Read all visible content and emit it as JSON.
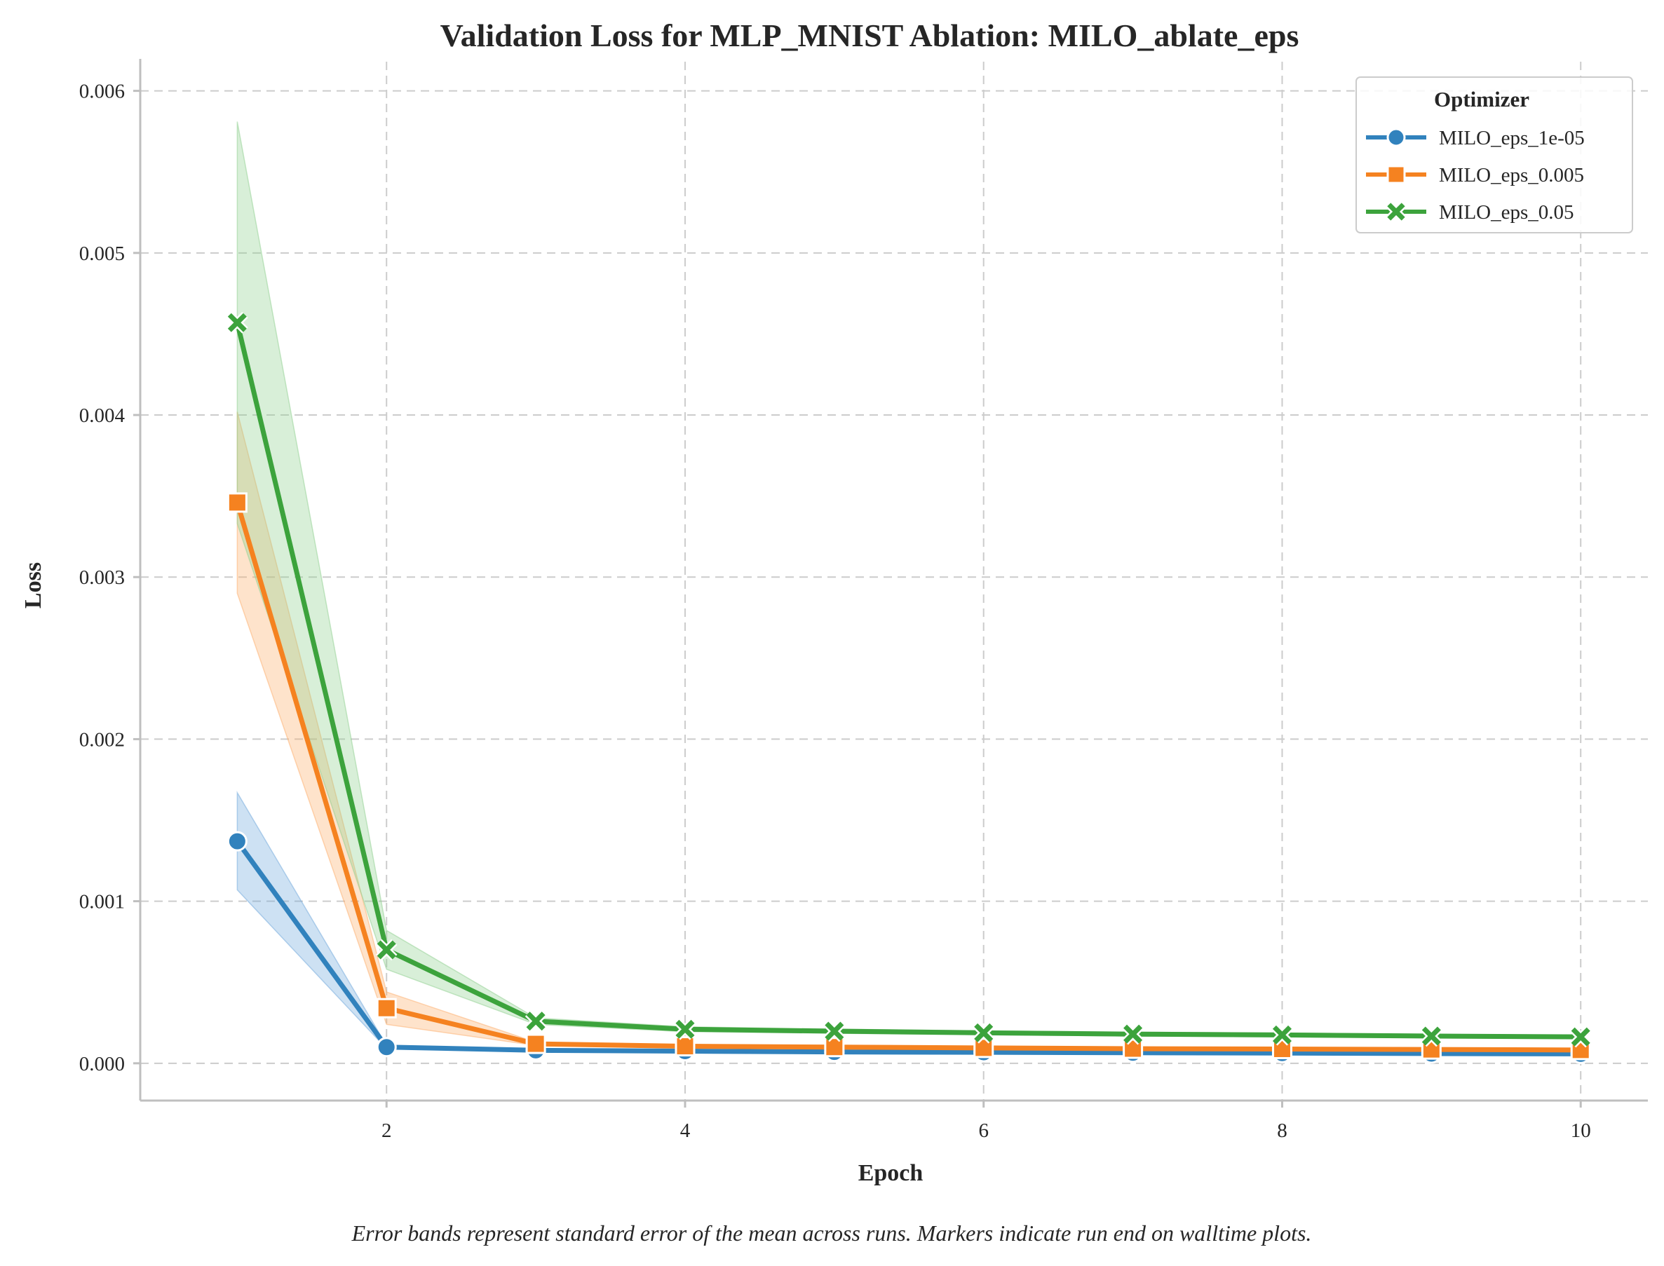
{
  "chart_data": {
    "type": "line",
    "title": "Validation Loss for MLP_MNIST Ablation: MILO_ablate_eps",
    "xlabel": "Epoch",
    "ylabel": "Loss",
    "xlim": [
      0.35,
      10.45
    ],
    "ylim": [
      -0.00023,
      0.00618
    ],
    "xticks": [
      2,
      4,
      6,
      8,
      10
    ],
    "xtick_labels": [
      "2",
      "4",
      "6",
      "8",
      "10"
    ],
    "yticks": [
      0.0,
      0.001,
      0.002,
      0.003,
      0.004,
      0.005,
      0.006
    ],
    "ytick_labels": [
      "0.000",
      "0.001",
      "0.002",
      "0.003",
      "0.004",
      "0.005",
      "0.006"
    ],
    "grid": true,
    "legend": {
      "title": "Optimizer",
      "placement": "top-right"
    },
    "x": [
      1,
      2,
      3,
      4,
      5,
      6,
      7,
      8,
      9,
      10
    ],
    "series": [
      {
        "name": "MILO_eps_1e-05",
        "color": "#3182bd",
        "band_color": "#6fa8dc",
        "marker": "circle",
        "values": [
          0.00137,
          0.0001,
          8e-05,
          7.5e-05,
          7e-05,
          6.8e-05,
          6.5e-05,
          6.3e-05,
          6e-05,
          5.8e-05
        ],
        "lower": [
          0.00107,
          9e-05,
          7e-05,
          7e-05,
          6.5e-05,
          6.2e-05,
          6e-05,
          5.8e-05,
          5.6e-05,
          5.4e-05
        ],
        "upper": [
          0.00167,
          0.00011,
          9e-05,
          8e-05,
          7.5e-05,
          7.2e-05,
          7e-05,
          6.8e-05,
          6.5e-05,
          6.3e-05
        ]
      },
      {
        "name": "MILO_eps_0.005",
        "color": "#f58220",
        "band_color": "#fdae6b",
        "marker": "square",
        "values": [
          0.00346,
          0.00034,
          0.00012,
          0.000105,
          0.0001,
          9.5e-05,
          9e-05,
          8.8e-05,
          8.5e-05,
          8.2e-05
        ],
        "lower": [
          0.0029,
          0.00024,
          0.00011,
          9.5e-05,
          9e-05,
          8.5e-05,
          8e-05,
          7.8e-05,
          7.5e-05,
          7.2e-05
        ],
        "upper": [
          0.00402,
          0.00044,
          0.00013,
          0.000115,
          0.00011,
          0.000105,
          0.0001,
          9.8e-05,
          9.5e-05,
          9.2e-05
        ]
      },
      {
        "name": "MILO_eps_0.05",
        "color": "#3ca33c",
        "band_color": "#8fd08f",
        "marker": "x",
        "values": [
          0.00457,
          0.0007,
          0.00026,
          0.00021,
          0.000198,
          0.000188,
          0.00018,
          0.000175,
          0.000168,
          0.000163
        ],
        "lower": [
          0.00333,
          0.00058,
          0.00024,
          0.000195,
          0.000185,
          0.000176,
          0.000168,
          0.000163,
          0.000157,
          0.000152
        ],
        "upper": [
          0.00581,
          0.00082,
          0.00028,
          0.000225,
          0.000211,
          0.0002,
          0.000192,
          0.000187,
          0.000179,
          0.000174
        ]
      }
    ]
  },
  "caption": "Error bands represent standard error of the mean across runs. Markers indicate run end on walltime plots."
}
